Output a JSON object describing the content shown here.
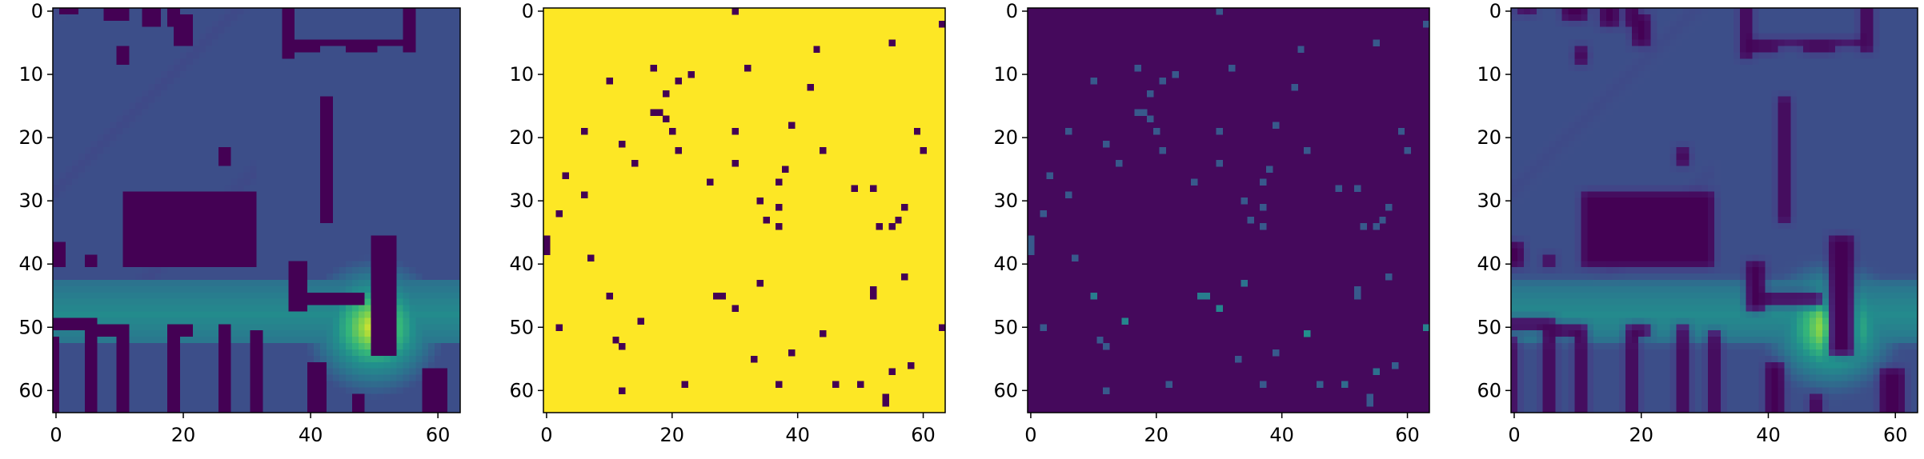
{
  "figure": {
    "layout": "1 row x 4 panels",
    "colormap": "viridis",
    "colors": {
      "low": "#440154",
      "mid": "#3b528b",
      "teal": "#21918c",
      "green": "#5ec962",
      "high": "#fde725"
    }
  },
  "chart_data": [
    {
      "type": "heatmap",
      "panel": 1,
      "description_kind": "continuous map",
      "grid_size": [
        64,
        64
      ],
      "xlim": [
        0,
        63
      ],
      "ylim": [
        63,
        0
      ],
      "x_ticks": [
        "0",
        "20",
        "40",
        "60"
      ],
      "y_ticks": [
        "0",
        "10",
        "20",
        "30",
        "40",
        "50",
        "60"
      ],
      "peak": {
        "x": 50,
        "y": 50,
        "value": 1.0
      },
      "background_value": 0.3,
      "blocks_value": 0.0,
      "blocks": [
        [
          1,
          0,
          3,
          1
        ],
        [
          8,
          0,
          4,
          2
        ],
        [
          10,
          6,
          2,
          3
        ],
        [
          14,
          0,
          3,
          3
        ],
        [
          18,
          0,
          2,
          3
        ],
        [
          19,
          1,
          3,
          5
        ],
        [
          26,
          22,
          2,
          3
        ],
        [
          11,
          29,
          21,
          12
        ],
        [
          36,
          5,
          20,
          1
        ],
        [
          36,
          0,
          2,
          8
        ],
        [
          38,
          5,
          4,
          2
        ],
        [
          46,
          5,
          5,
          2
        ],
        [
          55,
          0,
          2,
          7
        ],
        [
          42,
          14,
          2,
          19
        ],
        [
          42,
          31,
          2,
          3
        ],
        [
          37,
          40,
          3,
          8
        ],
        [
          50,
          36,
          4,
          19
        ],
        [
          40,
          45,
          9,
          2
        ],
        [
          0,
          37,
          2,
          4
        ],
        [
          5,
          39,
          2,
          2
        ],
        [
          0,
          49,
          7,
          2
        ],
        [
          0,
          52,
          1,
          12
        ],
        [
          5,
          51,
          2,
          13
        ],
        [
          6,
          50,
          6,
          2
        ],
        [
          10,
          51,
          2,
          13
        ],
        [
          18,
          50,
          4,
          2
        ],
        [
          18,
          50,
          2,
          14
        ],
        [
          20,
          50,
          2,
          1
        ],
        [
          26,
          50,
          2,
          14
        ],
        [
          31,
          51,
          2,
          13
        ],
        [
          40,
          56,
          3,
          8
        ],
        [
          47,
          61,
          2,
          3
        ],
        [
          58,
          57,
          4,
          7
        ]
      ]
    },
    {
      "type": "heatmap",
      "panel": 2,
      "description_kind": "binary mask",
      "grid_size": [
        64,
        64
      ],
      "xlim": [
        0,
        63
      ],
      "ylim": [
        63,
        0
      ],
      "x_ticks": [
        "0",
        "20",
        "40",
        "60"
      ],
      "y_ticks": [
        "0",
        "10",
        "20",
        "30",
        "40",
        "50",
        "60"
      ],
      "default_value": 1,
      "points_value": 0
    },
    {
      "type": "heatmap",
      "panel": 3,
      "description_kind": "sparse samples",
      "grid_size": [
        64,
        64
      ],
      "xlim": [
        0,
        63
      ],
      "ylim": [
        63,
        0
      ],
      "x_ticks": [
        "0",
        "20",
        "40",
        "60"
      ],
      "y_ticks": [
        "0",
        "10",
        "20",
        "30",
        "40",
        "50",
        "60"
      ],
      "default_value": 0
    },
    {
      "type": "heatmap",
      "panel": 4,
      "description_kind": "reconstructed map",
      "grid_size": [
        64,
        64
      ],
      "xlim": [
        0,
        63
      ],
      "ylim": [
        63,
        0
      ],
      "x_ticks": [
        "0",
        "20",
        "40",
        "60"
      ],
      "y_ticks": [
        "0",
        "10",
        "20",
        "30",
        "40",
        "50",
        "60"
      ],
      "peak": {
        "x": 50,
        "y": 50,
        "value": 1.0
      }
    }
  ],
  "sample_points": [
    [
      30,
      0
    ],
    [
      63,
      2
    ],
    [
      43,
      6
    ],
    [
      55,
      5
    ],
    [
      17,
      9
    ],
    [
      32,
      9
    ],
    [
      21,
      11
    ],
    [
      23,
      10
    ],
    [
      10,
      11
    ],
    [
      19,
      13
    ],
    [
      42,
      12
    ],
    [
      17,
      16
    ],
    [
      18,
      16
    ],
    [
      19,
      17
    ],
    [
      6,
      19
    ],
    [
      20,
      19
    ],
    [
      30,
      19
    ],
    [
      39,
      18
    ],
    [
      59,
      19
    ],
    [
      12,
      21
    ],
    [
      21,
      22
    ],
    [
      30,
      24
    ],
    [
      44,
      22
    ],
    [
      60,
      22
    ],
    [
      14,
      24
    ],
    [
      38,
      25
    ],
    [
      3,
      26
    ],
    [
      26,
      27
    ],
    [
      37,
      27
    ],
    [
      49,
      28
    ],
    [
      6,
      29
    ],
    [
      52,
      28
    ],
    [
      2,
      32
    ],
    [
      34,
      30
    ],
    [
      37,
      31
    ],
    [
      57,
      31
    ],
    [
      35,
      33
    ],
    [
      37,
      34
    ],
    [
      56,
      33
    ],
    [
      0,
      36
    ],
    [
      53,
      34
    ],
    [
      55,
      34
    ],
    [
      0,
      37
    ],
    [
      7,
      39
    ],
    [
      0,
      38
    ],
    [
      34,
      43
    ],
    [
      10,
      45
    ],
    [
      27,
      45
    ],
    [
      28,
      45
    ],
    [
      52,
      44
    ],
    [
      52,
      45
    ],
    [
      57,
      42
    ],
    [
      30,
      47
    ],
    [
      2,
      50
    ],
    [
      15,
      49
    ],
    [
      63,
      50
    ],
    [
      11,
      52
    ],
    [
      12,
      53
    ],
    [
      44,
      51
    ],
    [
      33,
      55
    ],
    [
      39,
      54
    ],
    [
      55,
      57
    ],
    [
      58,
      56
    ],
    [
      22,
      59
    ],
    [
      37,
      59
    ],
    [
      46,
      59
    ],
    [
      50,
      59
    ],
    [
      12,
      60
    ],
    [
      54,
      61
    ],
    [
      54,
      62
    ]
  ],
  "labels": {
    "x_ticks": [
      "0",
      "20",
      "40",
      "60"
    ],
    "y_ticks": [
      "0",
      "10",
      "20",
      "30",
      "40",
      "50",
      "60"
    ]
  }
}
